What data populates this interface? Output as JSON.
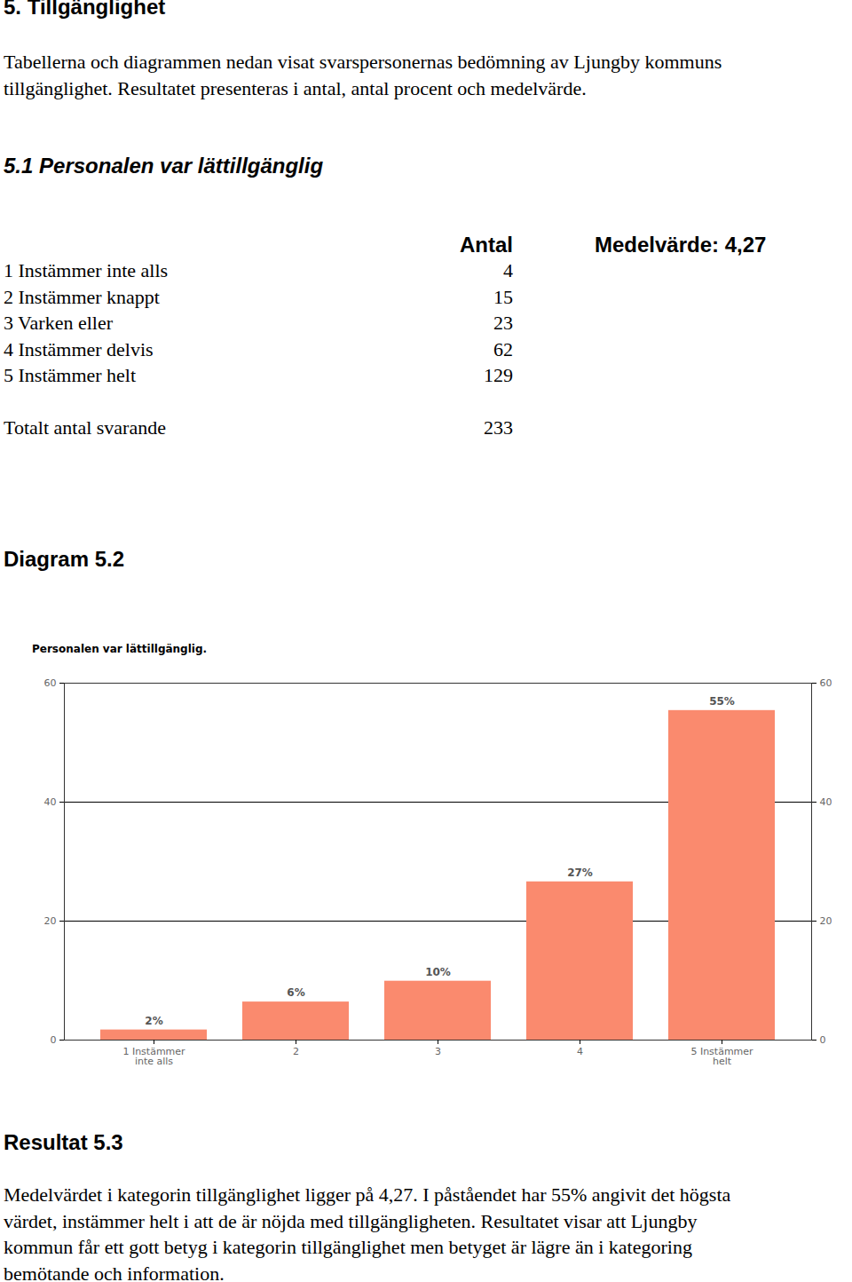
{
  "heading": "5. Tillgänglighet",
  "intro": [
    "Tabellerna och diagrammen nedan visat svarspersonernas bedömning av Ljungby kommuns",
    "tillgänglighet. Resultatet presenteras i antal, antal procent och medelvärde."
  ],
  "section": "5.1 Personalen var lättillgänglig",
  "table": {
    "header": [
      "Antal",
      "Medelvärde: 4,27"
    ],
    "rows": [
      [
        "1 Instämmer inte alls",
        "4"
      ],
      [
        "2 Instämmer knappt",
        "15"
      ],
      [
        "3 Varken eller",
        "23"
      ],
      [
        "4 Instämmer delvis",
        "62"
      ],
      [
        "5 Instämmer helt",
        "129"
      ]
    ],
    "total": [
      "Totalt antal svarande",
      "233"
    ]
  },
  "diagram_heading": "Diagram 5.2",
  "chart_data": {
    "type": "bar",
    "title": "Personalen var lättillgänglig.",
    "categories": [
      "1 Instämmer inte alls",
      "2",
      "3",
      "4",
      "5 Instämmer helt"
    ],
    "values": [
      1.7,
      6.4,
      9.9,
      26.6,
      55.4
    ],
    "value_labels": [
      "2%",
      "6%",
      "10%",
      "27%",
      "55%"
    ],
    "data_labels": true,
    "color": "#fa8a6e",
    "ylim": [
      0,
      60
    ],
    "yticks": [
      0,
      20,
      40,
      60
    ],
    "grid": true
  },
  "result_heading": "Resultat 5.3",
  "result": [
    "Medelvärdet i kategorin tillgänglighet ligger på 4,27. I påståendet har 55% angivit det högsta",
    "värdet, instämmer helt i att de är nöjda med tillgängligheten. Resultatet visar att Ljungby",
    "kommun får ett gott betyg i kategorin tillgänglighet men betyget är lägre än i kategoring",
    "bemötande och information."
  ]
}
